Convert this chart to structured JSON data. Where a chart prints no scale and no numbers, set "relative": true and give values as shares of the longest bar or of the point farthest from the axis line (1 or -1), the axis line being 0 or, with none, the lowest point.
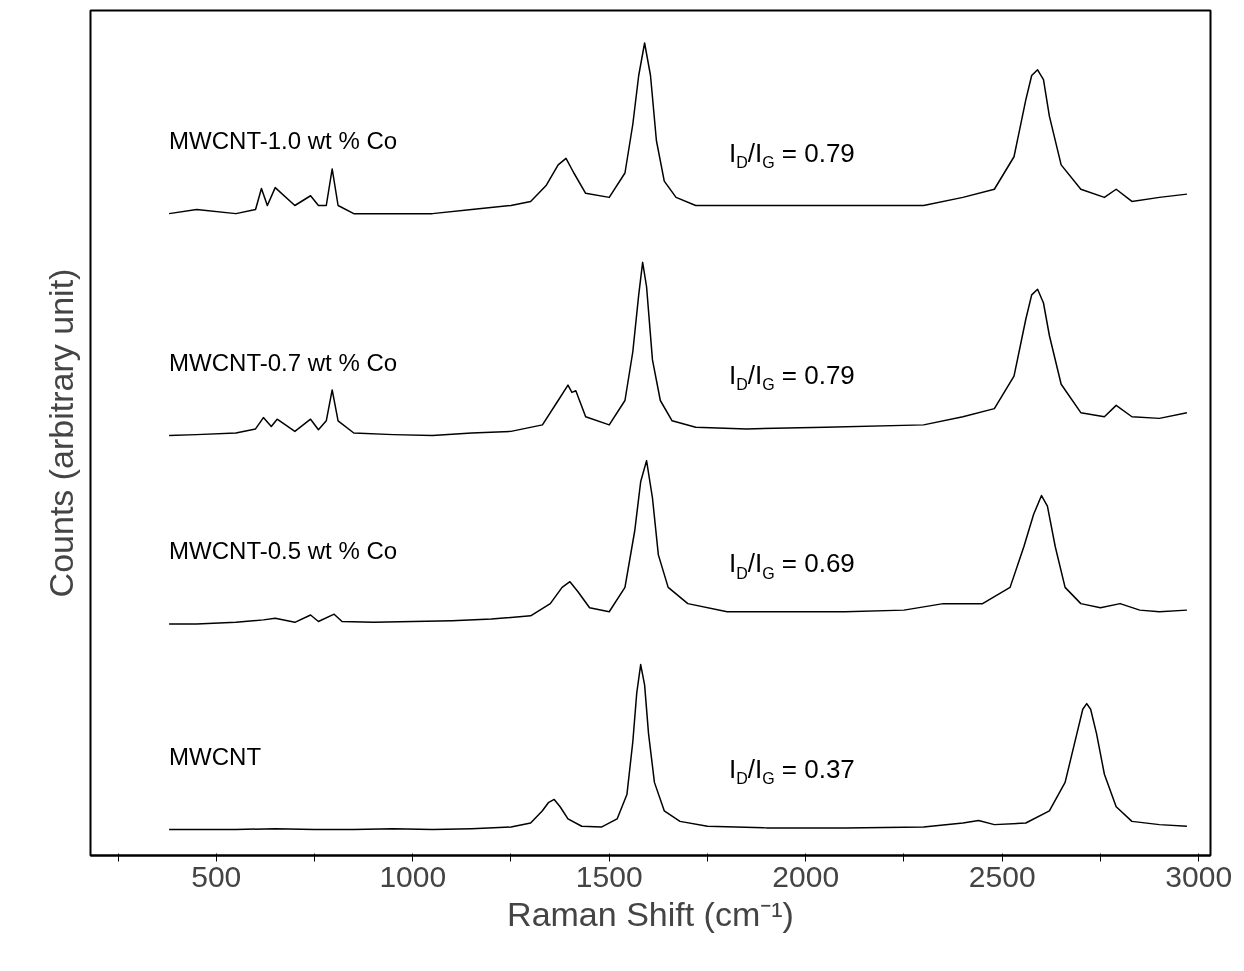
{
  "chart_data": {
    "type": "line",
    "relative": true,
    "xlabel": "Raman Shift (cm⁻¹)",
    "ylabel": "Counts (arbitrary unit)",
    "xlim": [
      180,
      3030
    ],
    "xticks": [
      {
        "value": 250,
        "label": null
      },
      500,
      {
        "value": 750,
        "label": null
      },
      1000,
      {
        "value": 1250,
        "label": null
      },
      1500,
      {
        "value": 1750,
        "label": null
      },
      2000,
      {
        "value": 2250,
        "label": null
      },
      2500,
      {
        "value": 2750,
        "label": null
      },
      3000
    ],
    "grid": false,
    "marker": "none",
    "line_style": "solid",
    "series": [
      {
        "name": "MWCNT-1.0 wt % Co",
        "color": "#000000",
        "x": [
          380,
          450,
          550,
          600,
          615,
          630,
          650,
          700,
          740,
          760,
          780,
          795,
          810,
          850,
          950,
          1050,
          1150,
          1250,
          1300,
          1340,
          1370,
          1390,
          1410,
          1440,
          1500,
          1540,
          1560,
          1575,
          1590,
          1605,
          1620,
          1640,
          1670,
          1720,
          1850,
          2050,
          2300,
          2400,
          2480,
          2530,
          2560,
          2575,
          2590,
          2605,
          2620,
          2650,
          2700,
          2760,
          2790,
          2830,
          2900,
          2970
        ],
        "values": [
          0.79,
          0.795,
          0.79,
          0.795,
          0.821,
          0.8,
          0.822,
          0.8,
          0.812,
          0.8,
          0.8,
          0.845,
          0.8,
          0.79,
          0.79,
          0.79,
          0.795,
          0.8,
          0.805,
          0.825,
          0.85,
          0.858,
          0.84,
          0.815,
          0.81,
          0.84,
          0.9,
          0.96,
          1.0,
          0.96,
          0.88,
          0.83,
          0.81,
          0.8,
          0.8,
          0.8,
          0.8,
          0.81,
          0.82,
          0.86,
          0.93,
          0.96,
          0.967,
          0.955,
          0.91,
          0.85,
          0.82,
          0.81,
          0.82,
          0.805,
          0.81,
          0.814
        ]
      },
      {
        "name": "MWCNT-0.7 wt % Co",
        "color": "#000000",
        "x": [
          380,
          450,
          550,
          600,
          620,
          640,
          655,
          700,
          740,
          760,
          780,
          795,
          810,
          850,
          950,
          1050,
          1150,
          1250,
          1330,
          1370,
          1395,
          1405,
          1415,
          1440,
          1500,
          1540,
          1560,
          1575,
          1585,
          1595,
          1610,
          1630,
          1660,
          1720,
          1850,
          2050,
          2300,
          2400,
          2480,
          2530,
          2560,
          2575,
          2590,
          2605,
          2620,
          2650,
          2700,
          2760,
          2790,
          2830,
          2900,
          2970
        ],
        "values": [
          0.517,
          0.518,
          0.52,
          0.525,
          0.539,
          0.528,
          0.537,
          0.522,
          0.537,
          0.524,
          0.535,
          0.573,
          0.535,
          0.52,
          0.518,
          0.517,
          0.52,
          0.522,
          0.53,
          0.56,
          0.579,
          0.57,
          0.572,
          0.54,
          0.53,
          0.56,
          0.62,
          0.69,
          0.73,
          0.7,
          0.61,
          0.56,
          0.535,
          0.527,
          0.525,
          0.527,
          0.53,
          0.54,
          0.55,
          0.59,
          0.66,
          0.69,
          0.697,
          0.68,
          0.64,
          0.58,
          0.545,
          0.54,
          0.554,
          0.54,
          0.538,
          0.545
        ]
      },
      {
        "name": "MWCNT-0.5 wt % Co",
        "color": "#000000",
        "x": [
          380,
          450,
          550,
          620,
          650,
          700,
          740,
          760,
          800,
          820,
          900,
          1000,
          1100,
          1200,
          1300,
          1350,
          1380,
          1400,
          1420,
          1450,
          1500,
          1540,
          1565,
          1580,
          1595,
          1610,
          1625,
          1650,
          1700,
          1800,
          1950,
          2100,
          2250,
          2350,
          2450,
          2520,
          2555,
          2580,
          2600,
          2615,
          2635,
          2660,
          2700,
          2750,
          2800,
          2850,
          2900,
          2970
        ],
        "values": [
          0.285,
          0.285,
          0.287,
          0.29,
          0.292,
          0.287,
          0.296,
          0.288,
          0.297,
          0.288,
          0.287,
          0.288,
          0.289,
          0.291,
          0.295,
          0.31,
          0.33,
          0.337,
          0.325,
          0.305,
          0.3,
          0.33,
          0.4,
          0.46,
          0.486,
          0.44,
          0.37,
          0.33,
          0.31,
          0.3,
          0.3,
          0.3,
          0.302,
          0.31,
          0.31,
          0.33,
          0.38,
          0.42,
          0.443,
          0.43,
          0.38,
          0.33,
          0.31,
          0.305,
          0.31,
          0.302,
          0.3,
          0.302
        ]
      },
      {
        "name": "MWCNT",
        "color": "#000000",
        "x": [
          380,
          450,
          550,
          650,
          750,
          850,
          950,
          1050,
          1150,
          1250,
          1300,
          1330,
          1345,
          1360,
          1375,
          1395,
          1430,
          1480,
          1520,
          1545,
          1560,
          1570,
          1580,
          1590,
          1600,
          1615,
          1640,
          1680,
          1750,
          1900,
          2100,
          2300,
          2400,
          2440,
          2480,
          2560,
          2620,
          2660,
          2690,
          2705,
          2715,
          2725,
          2740,
          2760,
          2790,
          2830,
          2900,
          2970
        ],
        "values": [
          0.032,
          0.032,
          0.032,
          0.033,
          0.032,
          0.032,
          0.033,
          0.032,
          0.033,
          0.035,
          0.04,
          0.055,
          0.065,
          0.069,
          0.06,
          0.045,
          0.036,
          0.035,
          0.045,
          0.075,
          0.14,
          0.2,
          0.235,
          0.21,
          0.15,
          0.09,
          0.055,
          0.042,
          0.036,
          0.034,
          0.034,
          0.035,
          0.04,
          0.043,
          0.038,
          0.04,
          0.055,
          0.09,
          0.15,
          0.18,
          0.187,
          0.18,
          0.15,
          0.1,
          0.06,
          0.042,
          0.038,
          0.036
        ]
      }
    ],
    "annotations": [
      "I$_{D}$/I$_{G}$ = 0.79",
      "I$_{D}$/I$_{G}$ = 0.79",
      "I$_{D}$/I$_{G}$ = 0.69",
      "I$_{D}$/I$_{G}$ = 0.37"
    ]
  }
}
